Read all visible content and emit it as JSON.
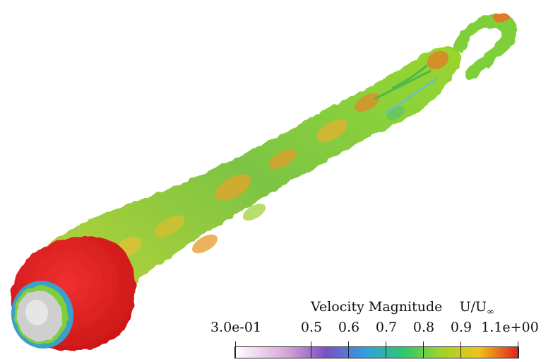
{
  "colorbar": {
    "title": "Velocity Magnitude",
    "unit": "U/U",
    "unit_sub": "∞",
    "min_label": "3.0e-01",
    "max_label": "1.1e+00",
    "tick_labels": [
      "0.5",
      "0.6",
      "0.7",
      "0.8",
      "0.9"
    ],
    "range": [
      0.3,
      1.1
    ],
    "ticks": [
      0.3,
      0.5,
      0.6,
      0.7,
      0.8,
      0.9,
      1.1
    ],
    "colors": [
      "#ffffff",
      "#d9a6d6",
      "#7a4fc4",
      "#2f9fe0",
      "#2ec96a",
      "#9ad42a",
      "#f0c21a",
      "#e0201c"
    ]
  },
  "visualization": {
    "subject": "wake-isosurface",
    "head_color": "#e32020",
    "body_color": "#76c24a",
    "highlight_color": "#f0a02a",
    "tail_color": "#8bd13c",
    "core_color": "#c8c8c8"
  }
}
